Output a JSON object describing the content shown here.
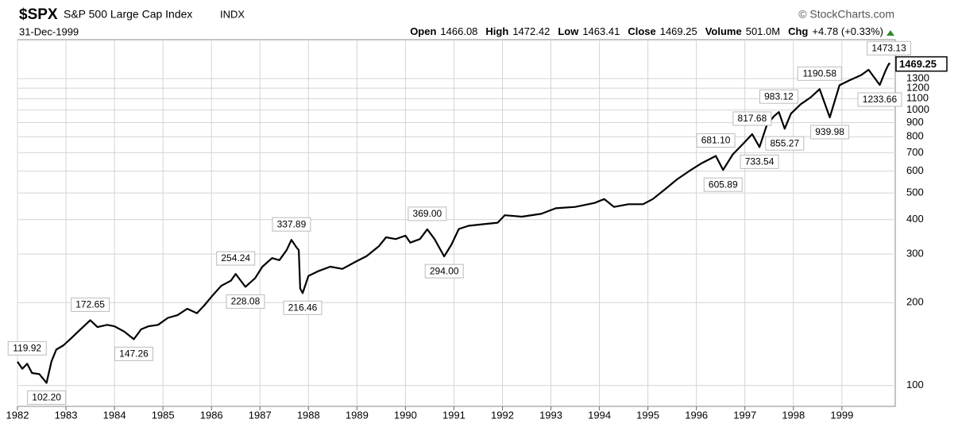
{
  "header": {
    "symbol": "$SPX",
    "name": "S&P 500 Large Cap Index",
    "exchange": "INDX",
    "credit": "© StockCharts.com",
    "date": "31-Dec-1999",
    "quote": [
      {
        "label": "Open",
        "value": "1466.08"
      },
      {
        "label": "High",
        "value": "1472.42"
      },
      {
        "label": "Low",
        "value": "1463.41"
      },
      {
        "label": "Close",
        "value": "1469.25"
      },
      {
        "label": "Volume",
        "value": "501.0M"
      },
      {
        "label": "Chg",
        "value": "+4.78 (+0.33%)"
      }
    ]
  },
  "chart_data": {
    "type": "line",
    "log_scale": true,
    "grid": true,
    "x": [
      1982.0,
      1982.1,
      1982.2,
      1982.3,
      1982.45,
      1982.6,
      1982.7,
      1982.8,
      1982.95,
      1983.1,
      1983.3,
      1983.5,
      1983.65,
      1983.85,
      1984.0,
      1984.2,
      1984.4,
      1984.55,
      1984.7,
      1984.9,
      1985.1,
      1985.3,
      1985.5,
      1985.7,
      1985.85,
      1986.0,
      1986.2,
      1986.4,
      1986.5,
      1986.7,
      1986.9,
      1987.05,
      1987.25,
      1987.4,
      1987.55,
      1987.65,
      1987.75,
      1987.8,
      1987.83,
      1987.88,
      1988.0,
      1988.2,
      1988.45,
      1988.7,
      1988.95,
      1989.2,
      1989.45,
      1989.6,
      1989.8,
      1990.0,
      1990.1,
      1990.3,
      1990.45,
      1990.6,
      1990.8,
      1990.95,
      1991.1,
      1991.3,
      1991.6,
      1991.9,
      1992.05,
      1992.4,
      1992.8,
      1993.1,
      1993.5,
      1993.9,
      1994.1,
      1994.3,
      1994.6,
      1994.9,
      1995.1,
      1995.35,
      1995.6,
      1995.85,
      1996.1,
      1996.4,
      1996.55,
      1996.75,
      1996.95,
      1997.15,
      1997.3,
      1997.45,
      1997.6,
      1997.7,
      1997.82,
      1997.95,
      1998.15,
      1998.35,
      1998.54,
      1998.75,
      1998.95,
      1999.15,
      1999.4,
      1999.55,
      1999.78,
      1999.9,
      1999.97,
      1999.995
    ],
    "series": [
      {
        "color": "#000000",
        "values": [
          122,
          115,
          119.92,
          111,
          110,
          102.2,
          122,
          135,
          140,
          148,
          160,
          172.65,
          163,
          166,
          164,
          157,
          147.26,
          160,
          164,
          166,
          176,
          180,
          190,
          183,
          195,
          210,
          230,
          240,
          254.24,
          228.08,
          245,
          270,
          290,
          285,
          310,
          337.89,
          318,
          310,
          225,
          216.46,
          250,
          260,
          270,
          265,
          280,
          295,
          320,
          345,
          340,
          350,
          330,
          340,
          369,
          340,
          294,
          325,
          370,
          380,
          385,
          390,
          415,
          410,
          420,
          440,
          445,
          460,
          475,
          445,
          455,
          455,
          475,
          515,
          560,
          600,
          640,
          681.1,
          605.89,
          690,
          750,
          817.68,
          733.54,
          880,
          950,
          983.12,
          855.27,
          970,
          1050,
          1110,
          1190.58,
          939.98,
          1230,
          1280,
          1340,
          1400,
          1233.66,
          1390,
          1473.13,
          1469.25
        ],
        "value_labels": [
          null,
          null,
          "119.92",
          null,
          null,
          "102.20",
          null,
          null,
          null,
          null,
          null,
          "172.65",
          null,
          null,
          null,
          null,
          "147.26",
          null,
          null,
          null,
          null,
          null,
          null,
          null,
          null,
          null,
          null,
          null,
          "254.24",
          "228.08",
          null,
          null,
          null,
          null,
          null,
          "337.89",
          null,
          null,
          null,
          "216.46",
          null,
          null,
          null,
          null,
          null,
          null,
          null,
          null,
          null,
          null,
          null,
          null,
          "369.00",
          null,
          "294.00",
          null,
          null,
          null,
          null,
          null,
          null,
          null,
          null,
          null,
          null,
          null,
          null,
          null,
          null,
          null,
          null,
          null,
          null,
          null,
          null,
          "681.10",
          "605.89",
          null,
          null,
          "817.68",
          "733.54",
          null,
          null,
          "983.12",
          "855.27",
          null,
          null,
          null,
          "1190.58",
          "939.98",
          null,
          null,
          null,
          null,
          "1233.66",
          null,
          "1473.13",
          "1469.25"
        ]
      }
    ],
    "xlim": [
      1982,
      2000.1
    ],
    "xticks": [
      1982,
      1983,
      1984,
      1985,
      1986,
      1987,
      1988,
      1989,
      1990,
      1991,
      1992,
      1993,
      1994,
      1995,
      1996,
      1997,
      1998,
      1999
    ],
    "ylim": [
      84,
      1800
    ],
    "yticks": [
      100,
      200,
      300,
      400,
      500,
      600,
      700,
      800,
      900,
      1000,
      1100,
      1200,
      1300
    ]
  }
}
